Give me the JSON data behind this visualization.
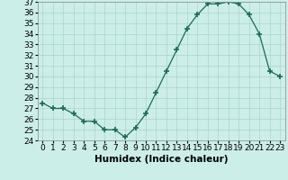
{
  "x": [
    0,
    1,
    2,
    3,
    4,
    5,
    6,
    7,
    8,
    9,
    10,
    11,
    12,
    13,
    14,
    15,
    16,
    17,
    18,
    19,
    20,
    21,
    22,
    23
  ],
  "y": [
    27.5,
    27.0,
    27.0,
    26.5,
    25.8,
    25.8,
    25.0,
    25.0,
    24.3,
    25.2,
    26.5,
    28.5,
    30.5,
    32.5,
    34.5,
    35.8,
    36.8,
    36.8,
    37.0,
    36.8,
    35.8,
    34.0,
    30.5,
    30.0
  ],
  "line_color": "#1a6b5a",
  "marker": "+",
  "marker_size": 4,
  "marker_lw": 1.2,
  "bg_color": "#cceee8",
  "grid_color": "#aad4ce",
  "xlabel": "Humidex (Indice chaleur)",
  "ylim": [
    24,
    37
  ],
  "yticks": [
    24,
    25,
    26,
    27,
    28,
    29,
    30,
    31,
    32,
    33,
    34,
    35,
    36,
    37
  ],
  "xtick_labels": [
    "0",
    "1",
    "2",
    "3",
    "4",
    "5",
    "6",
    "7",
    "8",
    "9",
    "10",
    "11",
    "12",
    "13",
    "14",
    "15",
    "16",
    "17",
    "18",
    "19",
    "20",
    "21",
    "22",
    "23"
  ],
  "xlabel_fontsize": 7.5,
  "tick_fontsize": 6.5
}
